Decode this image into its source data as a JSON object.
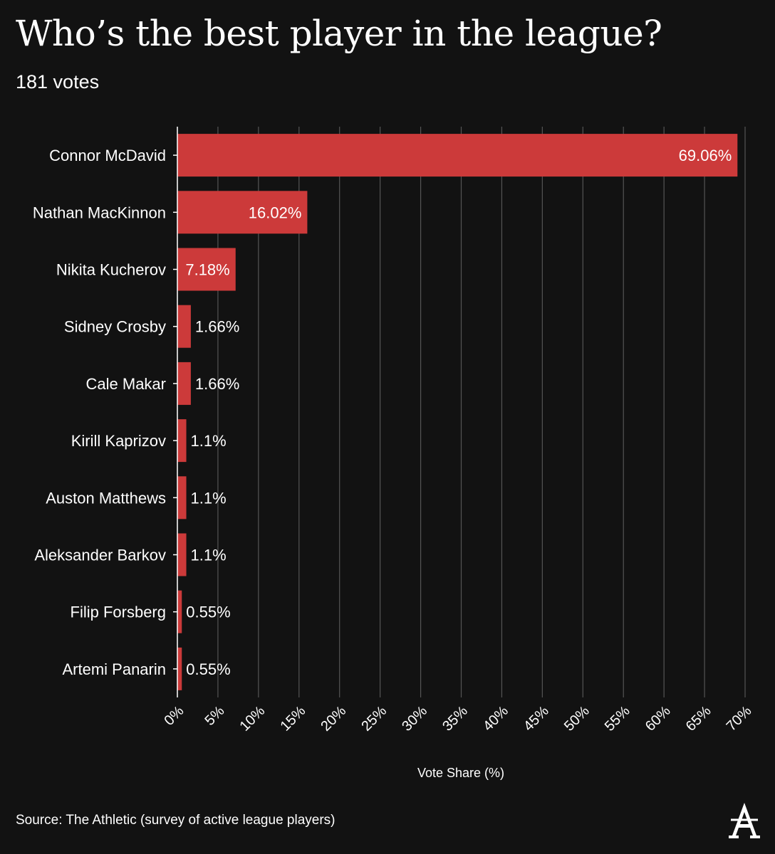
{
  "header": {
    "title": "Who’s the best player in the league?",
    "subtitle": "181 votes"
  },
  "footer": {
    "source": "Source: The Athletic (survey of active league players)",
    "logo": "the-athletic-logo"
  },
  "colors": {
    "background": "#121212",
    "bar": "#cc3a3a",
    "grid": "#555555",
    "text": "#ffffff"
  },
  "chart_data": {
    "type": "bar",
    "orientation": "horizontal",
    "title": "Who’s the best player in the league?",
    "subtitle": "181 votes",
    "xlabel": "Vote Share (%)",
    "ylabel": "",
    "xlim": [
      0,
      70
    ],
    "grid": true,
    "categories": [
      "Connor McDavid",
      "Nathan MacKinnon",
      "Nikita Kucherov",
      "Sidney Crosby",
      "Cale Makar",
      "Kirill Kaprizov",
      "Auston Matthews",
      "Aleksander Barkov",
      "Filip Forsberg",
      "Artemi Panarin"
    ],
    "values": [
      69.06,
      16.02,
      7.18,
      1.66,
      1.66,
      1.1,
      1.1,
      1.1,
      0.55,
      0.55
    ],
    "value_labels": [
      "69.06%",
      "16.02%",
      "7.18%",
      "1.66%",
      "1.66%",
      "1.1%",
      "1.1%",
      "1.1%",
      "0.55%",
      "0.55%"
    ],
    "ticks": [
      0,
      5,
      10,
      15,
      20,
      25,
      30,
      35,
      40,
      45,
      50,
      55,
      60,
      65,
      70
    ],
    "tick_labels": [
      "0%",
      "5%",
      "10%",
      "15%",
      "20%",
      "25%",
      "30%",
      "35%",
      "40%",
      "45%",
      "50%",
      "55%",
      "60%",
      "65%",
      "70%"
    ]
  }
}
